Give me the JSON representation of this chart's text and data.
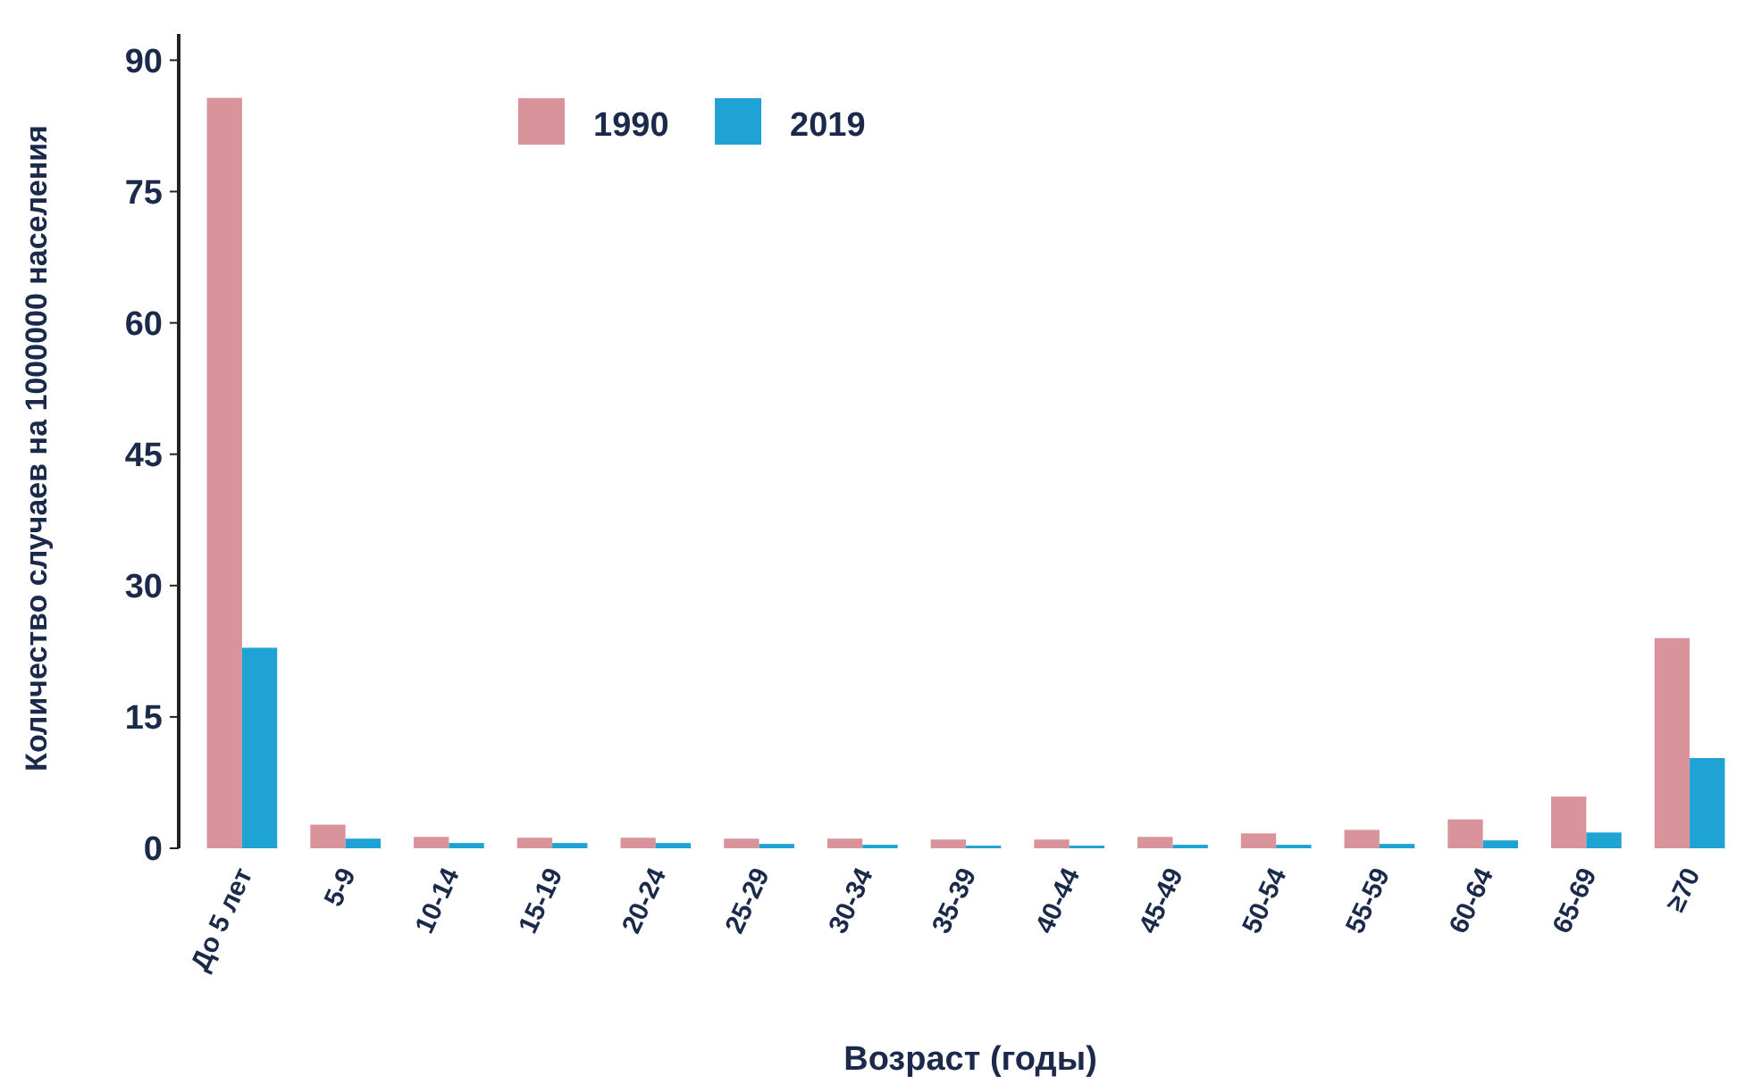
{
  "chart_data": {
    "type": "bar",
    "xlabel": "Возраст (годы)",
    "ylabel": "Количество случаев на 1000000 населения",
    "categories": [
      "До 5 лет",
      "5-9",
      "10-14",
      "15-19",
      "20-24",
      "25-29",
      "30-34",
      "35-39",
      "40-44",
      "45-49",
      "50-54",
      "55-59",
      "60-64",
      "65-69",
      "≥70"
    ],
    "series": [
      {
        "name": "1990",
        "color": "#d9949b",
        "values": [
          85.7,
          2.7,
          1.3,
          1.2,
          1.2,
          1.1,
          1.1,
          1.0,
          1.0,
          1.3,
          1.7,
          2.1,
          3.3,
          5.9,
          24.0
        ]
      },
      {
        "name": "2019",
        "color": "#1fa3d4",
        "values": [
          22.9,
          1.1,
          0.6,
          0.6,
          0.6,
          0.5,
          0.4,
          0.3,
          0.3,
          0.4,
          0.4,
          0.5,
          0.9,
          1.8,
          10.3
        ]
      }
    ],
    "ylim": [
      0,
      93
    ],
    "yticks": [
      0,
      15,
      30,
      45,
      60,
      75,
      90
    ],
    "grid": false,
    "legend": "top"
  }
}
